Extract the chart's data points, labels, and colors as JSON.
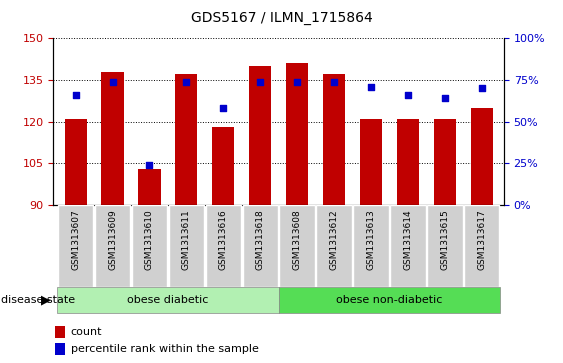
{
  "title": "GDS5167 / ILMN_1715864",
  "samples": [
    "GSM1313607",
    "GSM1313609",
    "GSM1313610",
    "GSM1313611",
    "GSM1313616",
    "GSM1313618",
    "GSM1313608",
    "GSM1313612",
    "GSM1313613",
    "GSM1313614",
    "GSM1313615",
    "GSM1313617"
  ],
  "counts": [
    121,
    138,
    103,
    137,
    118,
    140,
    141,
    137,
    121,
    121,
    121,
    125
  ],
  "percentile_ranks": [
    66,
    74,
    24,
    74,
    58,
    74,
    74,
    74,
    71,
    66,
    64,
    70
  ],
  "ylim_left": [
    90,
    150
  ],
  "ylim_right": [
    0,
    100
  ],
  "yticks_left": [
    90,
    105,
    120,
    135,
    150
  ],
  "yticks_right": [
    0,
    25,
    50,
    75,
    100
  ],
  "bar_color": "#c00000",
  "dot_color": "#0000cc",
  "group1_label": "obese diabetic",
  "group2_label": "obese non-diabetic",
  "group1_count": 6,
  "group2_count": 6,
  "disease_state_label": "disease state",
  "legend_count_label": "count",
  "legend_pct_label": "percentile rank within the sample",
  "group_color_light": "#b2f0b2",
  "group_color_dark": "#55dd55",
  "xlabel_bg": "#d0d0d0",
  "grid_color": "#000000",
  "title_fontsize": 10,
  "tick_fontsize": 8,
  "label_fontsize": 8
}
